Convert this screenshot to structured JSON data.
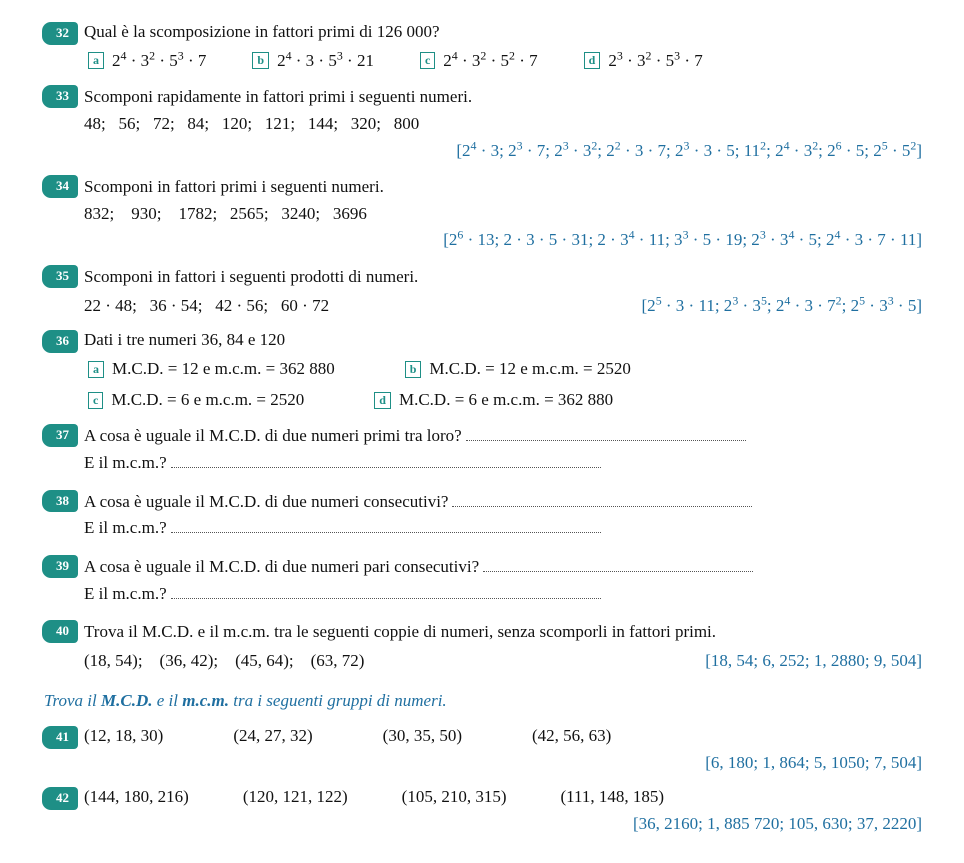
{
  "ex32": {
    "n": "32",
    "prompt": "Qual è la scomposizione in fattori primi di 126 000?",
    "a": "2<sup>4</sup> · 3<sup>2</sup> · 5<sup>3</sup> · 7",
    "b": "2<sup>4</sup> · 3 · 5<sup>3</sup> · 21",
    "c": "2<sup>4</sup> · 3<sup>2</sup> · 5<sup>2</sup> · 7",
    "d": "2<sup>3</sup> · 3<sup>2</sup> · 5<sup>3</sup> · 7"
  },
  "ex33": {
    "n": "33",
    "prompt": "Scomponi rapidamente in fattori primi i seguenti numeri.",
    "list": "48;   56;   72;   84;   120;   121;   144;   320;   800",
    "answers": "[2<sup>4</sup> · 3;  2<sup>3</sup> · 7;  2<sup>3</sup> · 3<sup>2</sup>;  2<sup>2</sup> · 3 · 7;  2<sup>3</sup> · 3 · 5;  11<sup>2</sup>;  2<sup>4</sup> · 3<sup>2</sup>;  2<sup>6</sup> · 5;  2<sup>5</sup> · 5<sup>2</sup>]"
  },
  "ex34": {
    "n": "34",
    "prompt": "Scomponi in fattori primi i seguenti numeri.",
    "list": "832;    930;    1782;   2565;   3240;   3696",
    "answers": "[2<sup>6</sup> · 13;  2 · 3 · 5 · 31;  2 · 3<sup>4</sup> · 11;  3<sup>3</sup> · 5 · 19;  2<sup>3</sup> · 3<sup>4</sup> · 5;  2<sup>4</sup> · 3 · 7 · 11]"
  },
  "ex35": {
    "n": "35",
    "prompt": "Scomponi in fattori i seguenti prodotti di numeri.",
    "list": "22 · 48;   36 · 54;   42 · 56;   60 · 72",
    "answers": "[2<sup>5</sup> · 3 · 11;  2<sup>3</sup> · 3<sup>5</sup>;  2<sup>4</sup> · 3 · 7<sup>2</sup>;  2<sup>5</sup> · 3<sup>3</sup> · 5]"
  },
  "ex36": {
    "n": "36",
    "prompt": "Dati i tre numeri 36, 84 e 120",
    "a": "M.C.D. =  12 e m.c.m. =  362 880",
    "b": "M.C.D. =  12 e m.c.m. =  2520",
    "c": "M.C.D. =  6 e m.c.m. =  2520",
    "d": "M.C.D. =  6 e m.c.m. =  362 880"
  },
  "ex37": {
    "n": "37",
    "q1": "A cosa è uguale il M.C.D. di due numeri primi tra loro?",
    "q2": "E il m.c.m.?"
  },
  "ex38": {
    "n": "38",
    "q1": "A cosa è uguale il M.C.D. di due numeri consecutivi?",
    "q2": "E il m.c.m.?"
  },
  "ex39": {
    "n": "39",
    "q1": "A cosa è uguale il M.C.D. di due numeri pari consecutivi?",
    "q2": "E il m.c.m.?"
  },
  "ex40": {
    "n": "40",
    "prompt": "Trova il M.C.D. e il m.c.m. tra le seguenti coppie di numeri, senza scomporli in fattori primi.",
    "list": "(18, 54);    (36, 42);    (45, 64);    (63, 72)",
    "answers": "[18, 54;  6, 252;  1, 2880;  9, 504]"
  },
  "section": "Trova il <b>M.C.D.</b> e il <b>m.c.m.</b> tra i seguenti gruppi di numeri.",
  "ex41": {
    "n": "41",
    "g1": "(12, 18, 30)",
    "g2": "(24, 27, 32)",
    "g3": "(30, 35, 50)",
    "g4": "(42, 56, 63)",
    "answers": "[6, 180;  1, 864;  5, 1050;  7, 504]"
  },
  "ex42": {
    "n": "42",
    "g1": "(144, 180, 216)",
    "g2": "(120, 121, 122)",
    "g3": "(105, 210, 315)",
    "g4": "(111, 148, 185)",
    "answers": "[36, 2160;  1, 885 720;  105, 630;  37, 2220]"
  }
}
